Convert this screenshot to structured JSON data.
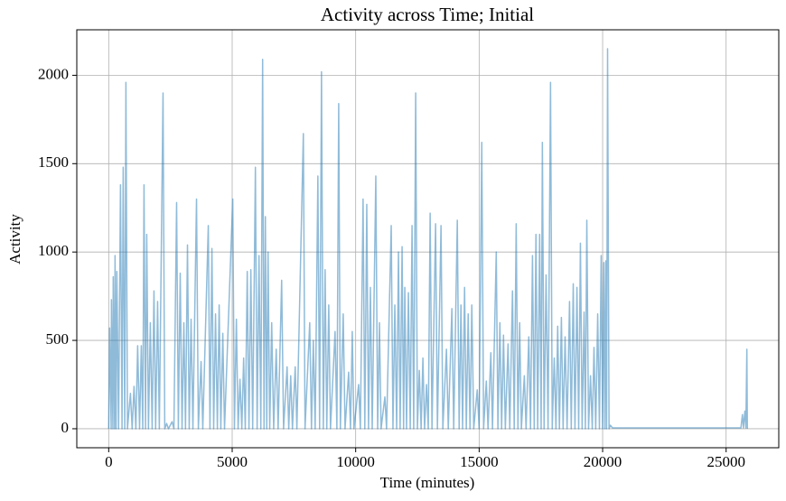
{
  "chart_data": {
    "type": "line",
    "title": "Activity across Time; Initial",
    "xlabel": "Time (minutes)",
    "ylabel": "Activity",
    "color": "#1f77b4",
    "grid": true,
    "xlim": [
      -1292,
      27132
    ],
    "ylim": [
      -107.5,
      2257.5
    ],
    "xticks": [
      0,
      5000,
      10000,
      15000,
      20000,
      25000
    ],
    "yticks": [
      0,
      500,
      1000,
      1500,
      2000
    ],
    "x": [
      0,
      37,
      100,
      110,
      170,
      183,
      240,
      257,
      300,
      330,
      400,
      477,
      540,
      587,
      650,
      697,
      760,
      880,
      950,
      1026,
      1100,
      1173,
      1250,
      1320,
      1380,
      1430,
      1490,
      1540,
      1610,
      1686,
      1760,
      1833,
      1900,
      1980,
      2050,
      2200,
      2270,
      2346,
      2420,
      2566,
      2640,
      2750,
      2820,
      2896,
      2970,
      3043,
      3110,
      3190,
      3260,
      3336,
      3410,
      3556,
      3630,
      3740,
      3810,
      4033,
      4100,
      4180,
      4250,
      4326,
      4400,
      4473,
      4540,
      4620,
      4690,
      5023,
      5090,
      5170,
      5240,
      5316,
      5390,
      5463,
      5530,
      5610,
      5680,
      5756,
      5830,
      5940,
      6010,
      6086,
      6160,
      6233,
      6290,
      6343,
      6400,
      6453,
      6520,
      6600,
      6680,
      6783,
      6860,
      7003,
      7080,
      7223,
      7290,
      7370,
      7440,
      7552,
      7620,
      7882,
      7950,
      8140,
      8210,
      8286,
      8360,
      8470,
      8540,
      8616,
      8690,
      8763,
      8830,
      8910,
      8980,
      9166,
      9240,
      9313,
      9380,
      9496,
      9570,
      9716,
      9790,
      9862,
      9930,
      10120,
      10190,
      10300,
      10370,
      10450,
      10520,
      10596,
      10670,
      10816,
      10890,
      10963,
      11030,
      11183,
      11250,
      11440,
      11510,
      11586,
      11660,
      11733,
      11800,
      11880,
      11940,
      11990,
      12060,
      12136,
      12210,
      12283,
      12350,
      12430,
      12500,
      12576,
      12650,
      12723,
      12790,
      12870,
      12940,
      13016,
      13090,
      13236,
      13310,
      13456,
      13530,
      13676,
      13750,
      13896,
      13970,
      14116,
      14190,
      14263,
      14330,
      14410,
      14480,
      14556,
      14630,
      14703,
      14780,
      14923,
      15000,
      15106,
      15180,
      15290,
      15360,
      15473,
      15540,
      15693,
      15760,
      15840,
      15910,
      15986,
      16060,
      16170,
      16240,
      16350,
      16420,
      16500,
      16570,
      16640,
      16710,
      16830,
      16900,
      17010,
      17080,
      17160,
      17230,
      17300,
      17370,
      17450,
      17510,
      17560,
      17630,
      17710,
      17790,
      17890,
      17960,
      18040,
      18110,
      18180,
      18250,
      18330,
      18400,
      18480,
      18560,
      18660,
      18730,
      18810,
      18880,
      18960,
      19030,
      19100,
      19170,
      19250,
      19300,
      19360,
      19430,
      19510,
      19580,
      19650,
      19720,
      19800,
      19870,
      19940,
      20000,
      20050,
      20090,
      20130,
      20160,
      20200,
      20260,
      20310,
      20400,
      25600,
      25660,
      25700,
      25760,
      25800,
      25840,
      25860
    ],
    "values": [
      0,
      570,
      0,
      730,
      0,
      860,
      0,
      980,
      0,
      890,
      0,
      1380,
      0,
      1480,
      0,
      1960,
      0,
      200,
      0,
      240,
      0,
      470,
      0,
      470,
      0,
      1380,
      0,
      1100,
      0,
      600,
      0,
      780,
      0,
      720,
      0,
      1900,
      0,
      30,
      0,
      40,
      0,
      1280,
      0,
      880,
      0,
      600,
      0,
      1040,
      0,
      620,
      0,
      1300,
      0,
      380,
      0,
      1150,
      0,
      1020,
      0,
      650,
      0,
      700,
      0,
      540,
      0,
      1300,
      0,
      620,
      0,
      280,
      0,
      400,
      0,
      890,
      0,
      900,
      0,
      1480,
      0,
      980,
      0,
      2090,
      0,
      1200,
      0,
      1000,
      0,
      600,
      0,
      450,
      0,
      840,
      0,
      350,
      0,
      300,
      0,
      350,
      0,
      1670,
      0,
      600,
      0,
      500,
      0,
      1430,
      0,
      2020,
      0,
      900,
      0,
      700,
      0,
      550,
      0,
      1840,
      0,
      650,
      0,
      320,
      0,
      550,
      0,
      250,
      0,
      1300,
      0,
      1270,
      0,
      800,
      0,
      1430,
      0,
      600,
      0,
      180,
      0,
      1150,
      0,
      700,
      0,
      1000,
      0,
      1030,
      0,
      800,
      0,
      770,
      0,
      1150,
      0,
      1900,
      0,
      330,
      0,
      400,
      0,
      250,
      0,
      1220,
      0,
      1160,
      0,
      1150,
      0,
      450,
      0,
      680,
      0,
      1180,
      0,
      700,
      0,
      800,
      0,
      650,
      0,
      700,
      0,
      220,
      0,
      1620,
      0,
      270,
      0,
      430,
      0,
      1000,
      0,
      600,
      0,
      530,
      0,
      480,
      0,
      780,
      0,
      1160,
      0,
      600,
      0,
      300,
      0,
      520,
      0,
      980,
      0,
      1100,
      0,
      1100,
      0,
      1620,
      0,
      870,
      0,
      1960,
      0,
      400,
      0,
      580,
      0,
      630,
      0,
      520,
      0,
      720,
      0,
      820,
      0,
      800,
      0,
      1050,
      0,
      660,
      0,
      1180,
      0,
      300,
      0,
      460,
      0,
      650,
      0,
      980,
      0,
      940,
      0,
      950,
      0,
      2150,
      0,
      20,
      5,
      5,
      80,
      5,
      100,
      5,
      450,
      0
    ]
  }
}
